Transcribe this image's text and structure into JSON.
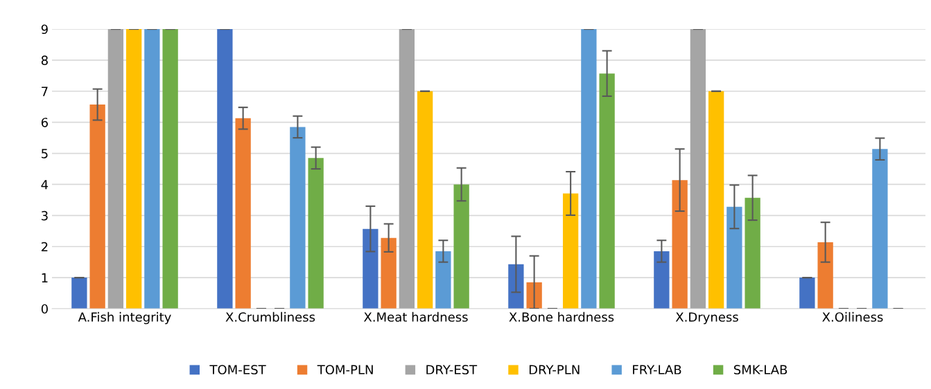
{
  "chart_data": {
    "type": "bar",
    "categories": [
      "A.Fish integrity",
      "X.Crumbliness",
      "X.Meat hardness",
      "X.Bone hardness",
      "X.Dryness",
      "X.Oiliness"
    ],
    "series": [
      {
        "name": "TOM-EST",
        "color": "#4472c4",
        "values": [
          1,
          9,
          2.57,
          1.43,
          1.85,
          1
        ],
        "errors": [
          0,
          0,
          0.73,
          0.9,
          0.35,
          0
        ]
      },
      {
        "name": "TOM-PLN",
        "color": "#ed7d31",
        "values": [
          6.57,
          6.13,
          2.28,
          0.85,
          4.14,
          2.14
        ],
        "errors": [
          0.5,
          0.35,
          0.45,
          0.85,
          1.0,
          0.64
        ]
      },
      {
        "name": "DRY-EST",
        "color": "#a5a5a5",
        "values": [
          9,
          0,
          9,
          0,
          9,
          0
        ],
        "errors": [
          0,
          0,
          0,
          0,
          0,
          0
        ]
      },
      {
        "name": "DRY-PLN",
        "color": "#ffc000",
        "values": [
          9,
          0,
          7,
          3.71,
          7,
          0
        ],
        "errors": [
          0,
          0,
          0,
          0.7,
          0,
          0
        ]
      },
      {
        "name": "FRY-LAB",
        "color": "#5b9bd5",
        "values": [
          9,
          5.85,
          1.85,
          9,
          3.28,
          5.14
        ],
        "errors": [
          0,
          0.35,
          0.35,
          0,
          0.7,
          0.35
        ]
      },
      {
        "name": "SMK-LAB",
        "color": "#70ad47",
        "values": [
          9,
          4.85,
          4.0,
          7.57,
          3.57,
          0
        ],
        "errors": [
          0,
          0.35,
          0.53,
          0.73,
          0.72,
          0
        ]
      }
    ],
    "ylim": [
      0,
      9
    ],
    "yticks": [
      0,
      1,
      2,
      3,
      4,
      5,
      6,
      7,
      8,
      9
    ],
    "grid": "y",
    "legend": "bottom"
  }
}
